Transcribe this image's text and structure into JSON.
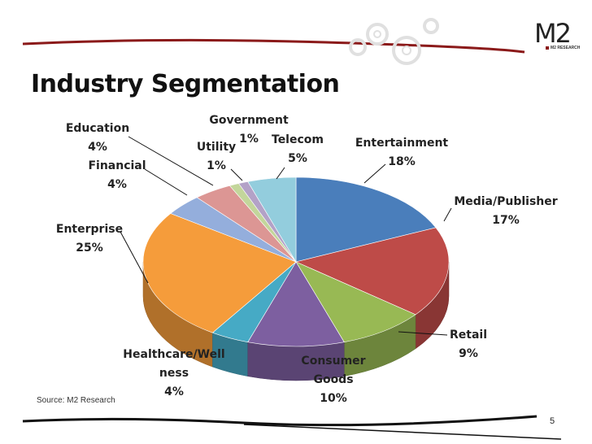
{
  "title": "Industry Segmentation",
  "source": "Source: M2 Research",
  "page_number": "5",
  "logo": {
    "mark": "M2",
    "subtitle": "M2 RESEARCH"
  },
  "colors": {
    "header_line": "#8b1a1a",
    "footer_line": "#111111"
  },
  "chart_data": {
    "type": "pie",
    "style": "3d-exploded-slice-none",
    "title": "",
    "slices": [
      {
        "name": "Entertainment",
        "value": 18,
        "label": "Entertainment",
        "pct": "18%",
        "color": "#4a7ebb"
      },
      {
        "name": "Media/Publisher",
        "value": 17,
        "label": "Media/Publisher",
        "pct": "17%",
        "color": "#be4b48"
      },
      {
        "name": "Retail",
        "value": 9,
        "label": "Retail",
        "pct": "9%",
        "color": "#98b954"
      },
      {
        "name": "Consumer Goods",
        "value": 10,
        "label": "Consumer Goods",
        "pct": "10%",
        "color": "#7d5fa0"
      },
      {
        "name": "Healthcare/Wellness",
        "value": 4,
        "label": "Healthcare/Wellness",
        "pct": "4%",
        "color": "#46aac5"
      },
      {
        "name": "Enterprise",
        "value": 25,
        "label": "Enterprise",
        "pct": "25%",
        "color": "#f59c3b"
      },
      {
        "name": "Financial",
        "value": 4,
        "label": "Financial",
        "pct": "4%",
        "color": "#94aedc"
      },
      {
        "name": "Education",
        "value": 4,
        "label": "Education",
        "pct": "4%",
        "color": "#dc9694"
      },
      {
        "name": "Utility",
        "value": 1,
        "label": "Utility",
        "pct": "1%",
        "color": "#c3d69b"
      },
      {
        "name": "Government",
        "value": 1,
        "label": "Government",
        "pct": "1%",
        "color": "#b3a2c7"
      },
      {
        "name": "Telecom",
        "value": 5,
        "label": "Telecom",
        "pct": "5%",
        "color": "#93cddd"
      }
    ],
    "labels": [
      {
        "slice": "Entertainment",
        "lines": [
          "Entertainment",
          "18%"
        ]
      },
      {
        "slice": "Media/Publisher",
        "lines": [
          "Media/Publisher",
          "17%"
        ]
      },
      {
        "slice": "Retail",
        "lines": [
          "Retail",
          "9%"
        ]
      },
      {
        "slice": "Consumer Goods",
        "lines": [
          "Consumer",
          "Goods",
          "10%"
        ]
      },
      {
        "slice": "Healthcare/Wellness",
        "lines": [
          "Healthcare/Well",
          "ness",
          "4%"
        ]
      },
      {
        "slice": "Enterprise",
        "lines": [
          "Enterprise",
          "25%"
        ]
      },
      {
        "slice": "Financial",
        "lines": [
          "Financial",
          "4%"
        ]
      },
      {
        "slice": "Education",
        "lines": [
          "Education",
          "4%"
        ]
      },
      {
        "slice": "Utility",
        "lines": [
          "Utility",
          "1%"
        ]
      },
      {
        "slice": "Government",
        "lines": [
          "Government",
          "1%"
        ]
      },
      {
        "slice": "Telecom",
        "lines": [
          "Telecom",
          "5%"
        ]
      }
    ]
  }
}
